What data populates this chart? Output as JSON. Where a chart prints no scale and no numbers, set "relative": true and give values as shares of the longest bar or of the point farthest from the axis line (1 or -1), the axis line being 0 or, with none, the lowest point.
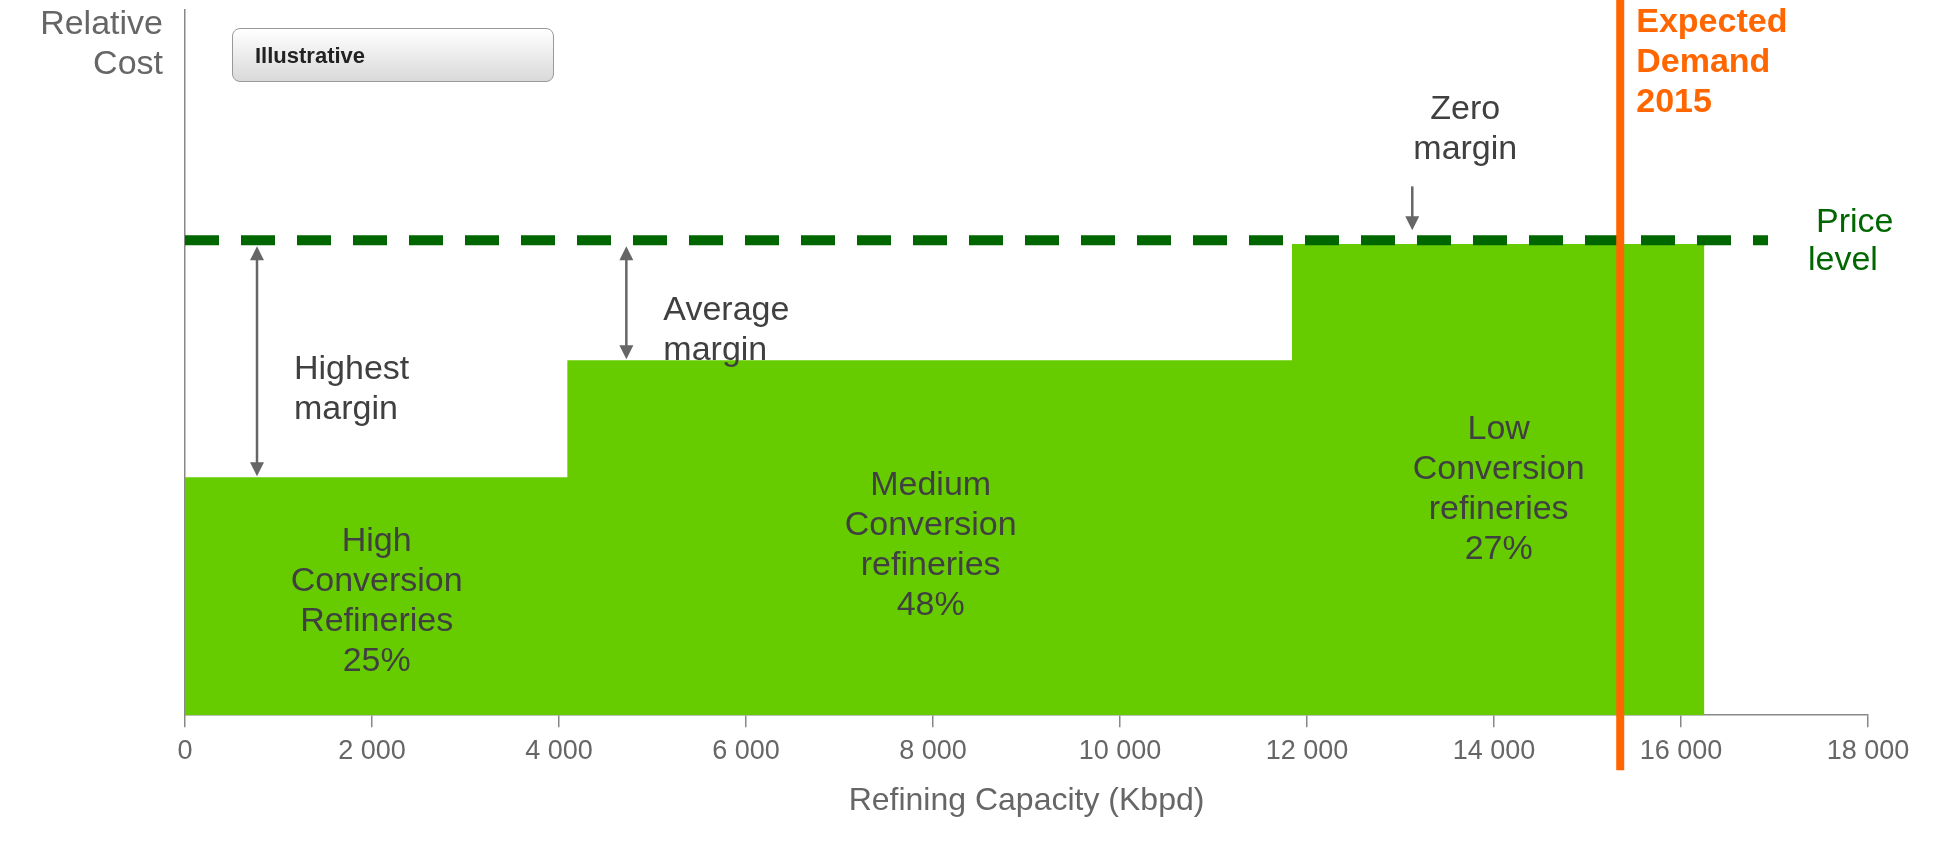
{
  "chart_data": {
    "type": "area",
    "relative": true,
    "xlabel": "Refining Capacity (Kbpd)",
    "ylabel": "Relative Cost",
    "x": [
      0,
      4100,
      4100,
      11850,
      11850,
      16250
    ],
    "values": [
      0.504,
      0.504,
      0.753,
      0.753,
      1,
      1
    ],
    "color": "#66cc00",
    "xlim": [
      0,
      18000
    ],
    "xticks": [
      {
        "value": 0,
        "label": "0"
      },
      {
        "value": 2000,
        "label": "2 000"
      },
      {
        "value": 4000,
        "label": "4 000"
      },
      {
        "value": 6000,
        "label": "6 000"
      },
      {
        "value": 8000,
        "label": "8 000"
      },
      {
        "value": 10000,
        "label": "10 000"
      },
      {
        "value": 12000,
        "label": "12 000"
      },
      {
        "value": 14000,
        "label": "14 000"
      },
      {
        "value": 16000,
        "label": "16 000"
      },
      {
        "value": 18000,
        "label": "18 000"
      }
    ],
    "ref_lines": [
      {
        "axis": "y",
        "value": 1.01,
        "label": "Price level",
        "color": "#006600",
        "line_style": "dashed"
      },
      {
        "axis": "x",
        "value": 15350,
        "label": "Expected Demand 2015",
        "color": "#ff6600"
      }
    ],
    "annotations": [
      "Illustrative",
      "High Conversion Refineries 25%",
      "Medium Conversion refineries 48%",
      "Low Conversion refineries 27%",
      "Highest margin",
      "Average margin",
      "Zero margin"
    ]
  }
}
